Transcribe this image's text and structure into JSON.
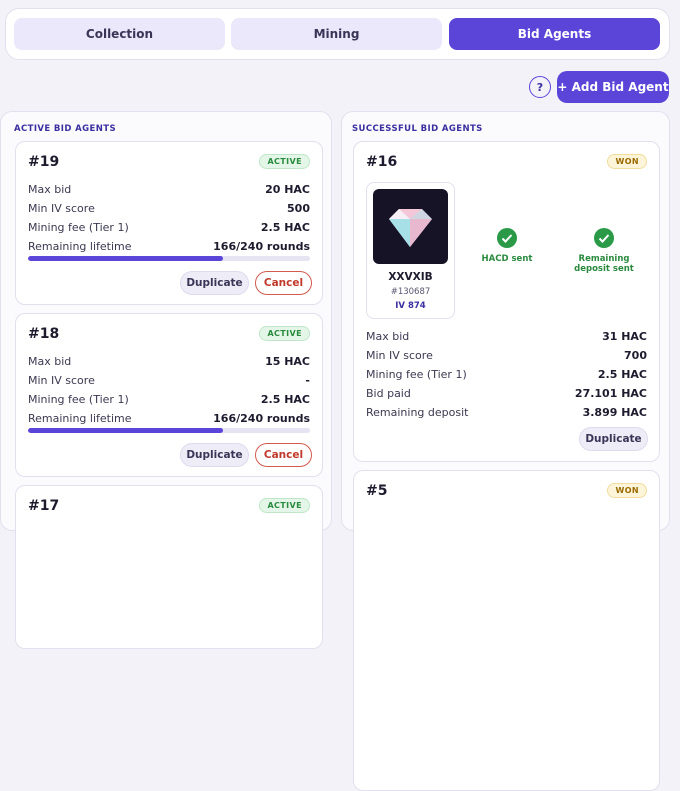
{
  "tabs": [
    "Collection",
    "Mining",
    "Bid Agents"
  ],
  "help_button": "?",
  "add_button": "+ Add Bid Agent",
  "active_panel": {
    "title": "ACTIVE BID AGENTS",
    "agents": [
      {
        "id": "#19",
        "status": "ACTIVE",
        "rows": [
          [
            "Max bid",
            "20 HAC"
          ],
          [
            "Min IV score",
            "500"
          ],
          [
            "Mining fee (Tier 1)",
            "2.5 HAC"
          ],
          [
            "Remaining lifetime",
            "166/240 rounds"
          ]
        ],
        "actions": [
          "Duplicate",
          "Cancel"
        ]
      },
      {
        "id": "#18",
        "status": "ACTIVE",
        "rows": [
          [
            "Max bid",
            "15 HAC"
          ],
          [
            "Min IV score",
            "-"
          ],
          [
            "Mining fee (Tier 1)",
            "2.5 HAC"
          ],
          [
            "Remaining lifetime",
            "166/240 rounds"
          ]
        ],
        "actions": [
          "Duplicate",
          "Cancel"
        ]
      },
      {
        "id": "#17",
        "status": "ACTIVE"
      }
    ]
  },
  "successful_panel": {
    "title": "SUCCESSFUL BID AGENTS",
    "agents": [
      {
        "id": "#16",
        "status": "WON",
        "item": {
          "name": "XXVXIB",
          "number": "#130687",
          "iv": "IV 874"
        },
        "steps": [
          "HACD sent",
          "Remaining deposit sent"
        ],
        "rows": [
          [
            "Max bid",
            "31 HAC"
          ],
          [
            "Min IV score",
            "700"
          ],
          [
            "Mining fee (Tier 1)",
            "2.5 HAC"
          ],
          [
            "Bid paid",
            "27.101 HAC"
          ],
          [
            "Remaining deposit",
            "3.899 HAC"
          ]
        ],
        "actions": [
          "Duplicate"
        ]
      },
      {
        "id": "#5",
        "status": "WON"
      }
    ]
  }
}
